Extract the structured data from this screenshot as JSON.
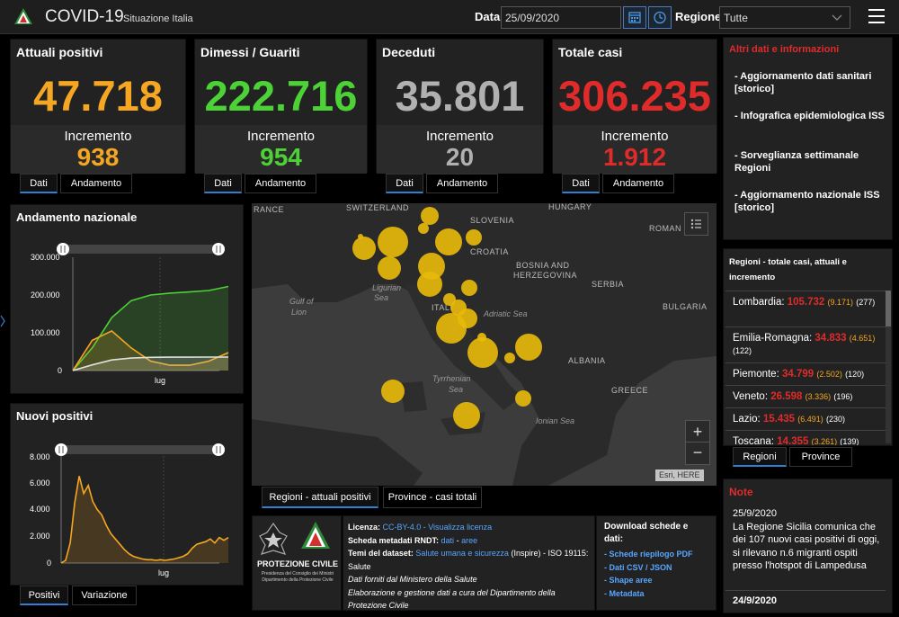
{
  "header": {
    "title": "COVID-19",
    "subtitle": "Situazione Italia",
    "date_label": "Data",
    "date_value": "25/09/2020",
    "region_label": "Regione",
    "region_value": "Tutte"
  },
  "cards": [
    {
      "title": "Attuali positivi",
      "value": "47.718",
      "inc_label": "Incremento",
      "inc_value": "938",
      "color": "#f5a623",
      "tabs": [
        "Dati",
        "Andamento"
      ]
    },
    {
      "title": "Dimessi / Guariti",
      "value": "222.716",
      "inc_label": "Incremento",
      "inc_value": "954",
      "color": "#4cd137",
      "tabs": [
        "Dati",
        "Andamento"
      ]
    },
    {
      "title": "Deceduti",
      "value": "35.801",
      "inc_label": "Incremento",
      "inc_value": "20",
      "color": "#b0b0b0",
      "tabs": [
        "Dati",
        "Andamento"
      ]
    },
    {
      "title": "Totale casi",
      "value": "306.235",
      "inc_label": "Incremento",
      "inc_value": "1.912",
      "color": "#e02b2b",
      "tabs": [
        "Dati",
        "Andamento"
      ]
    }
  ],
  "trend_chart": {
    "title": "Andamento nazionale",
    "y_ticks": [
      "300.000",
      "200.000",
      "100.000",
      "0"
    ],
    "x_label": "lug"
  },
  "new_chart": {
    "title": "Nuovi positivi",
    "y_ticks": [
      "8.000",
      "6.000",
      "4.000",
      "2.000",
      "0"
    ],
    "x_label": "lug",
    "tabs": [
      "Positivi",
      "Variazione"
    ]
  },
  "chart_data": [
    {
      "type": "area",
      "title": "Andamento nazionale",
      "ylim": [
        0,
        300000
      ],
      "series": [
        {
          "values": [
            0,
            60000,
            140000,
            185000,
            200000,
            205000,
            208000,
            212000,
            222716
          ],
          "color": "#4cd137"
        },
        {
          "values": [
            0,
            80000,
            105000,
            60000,
            25000,
            14000,
            14000,
            25000,
            47718
          ],
          "color": "#f5a623"
        },
        {
          "values": [
            0,
            15000,
            28000,
            33000,
            35000,
            35500,
            35500,
            35700,
            35801
          ],
          "color": "#e0e0e0"
        }
      ]
    },
    {
      "type": "area",
      "title": "Nuovi positivi",
      "ylim": [
        0,
        8000
      ],
      "series": [
        {
          "values": [
            0,
            200,
            1500,
            4500,
            6500,
            5200,
            5800,
            4600,
            4000,
            3600,
            2800,
            2200,
            1800,
            1400,
            1000,
            700,
            500,
            400,
            300,
            250,
            250,
            200,
            250,
            200,
            250,
            300,
            400,
            500,
            700,
            1100,
            1400,
            1500,
            1600,
            1800,
            1500,
            1900,
            1700,
            1900
          ],
          "color": "#f5a623"
        }
      ]
    }
  ],
  "map": {
    "labels": [
      "RANCE",
      "SWITZERLAND",
      "SLOVENIA",
      "HUNGARY",
      "ROMAN",
      "CROATIA",
      "BOSNIA AND",
      "HERZEGOVINA",
      "SERBIA",
      "BULGARIA",
      "ITALY",
      "ALBANIA",
      "GREECE"
    ],
    "seas": [
      "Ligurian",
      "Sea",
      "Gulf of",
      "Lion",
      "Adriatic Sea",
      "Tyrrhenian",
      "Sea",
      "Ionian Sea"
    ],
    "attribution": "Esri, HERE",
    "tabs": [
      "Regioni - attuali positivi",
      "Province - casi totali"
    ],
    "zoom_in": "+",
    "zoom_out": "−"
  },
  "info": {
    "title": "Altri dati e informazioni",
    "items": [
      "- Aggiornamento dati sanitari [storico]",
      "- Infografica epidemiologica ISS",
      "- Sorveglianza settimanale Regioni",
      "- Aggiornamento nazionale ISS [storico]"
    ]
  },
  "regions": {
    "title": "Regioni - totale casi, attuali e incremento",
    "rows": [
      {
        "name": "Lombardia:",
        "total": "105.732",
        "current": "(9.171)",
        "inc": "(277)"
      },
      {
        "name": "Emilia-Romagna:",
        "total": "34.833",
        "current": "(4.651)",
        "inc": "(122)"
      },
      {
        "name": "Piemonte:",
        "total": "34.799",
        "current": "(2.502)",
        "inc": "(120)"
      },
      {
        "name": "Veneto:",
        "total": "26.598",
        "current": "(3.336)",
        "inc": "(196)"
      },
      {
        "name": "Lazio:",
        "total": "15.435",
        "current": "(6.491)",
        "inc": "(230)"
      },
      {
        "name": "Toscana:",
        "total": "14.355",
        "current": "(3.261)",
        "inc": "(139)"
      }
    ],
    "tabs": [
      "Regioni",
      "Province"
    ]
  },
  "notes": {
    "title": "Note",
    "entries": [
      {
        "date": "25/9/2020",
        "text": "La Regione Sicilia comunica che dei 107 nuovi casi positivi di oggi, si rilevano n.6 migranti ospiti presso l'hotspot di Lampedusa"
      },
      {
        "date": "24/9/2020",
        "text": ""
      }
    ]
  },
  "protezione": {
    "name": "PROTEZIONE CIVILE",
    "line1": "Presidenza del Consiglio dei Ministri",
    "line2": "Dipartimento della Protezione Civile"
  },
  "license": {
    "licenza_label": "Licenza:",
    "licenza_link1": "CC-BY-4.0",
    "licenza_sep": " - ",
    "licenza_link2": "Visualizza licenza",
    "metadati_label": "Scheda metadati RNDT:",
    "metadati_link1": "dati",
    "metadati_link2": "aree",
    "temi_label": "Temi del dataset:",
    "temi_link": "Salute umana e sicurezza",
    "temi_rest": "(Inspire) - ISO 19115:",
    "temi_end": "Salute",
    "line_fonte": "Dati forniti dal Ministero della Salute",
    "line_elab": "Elaborazione e gestione dati a cura del Dipartimento della Protezione Civile"
  },
  "download": {
    "title": "Download schede e dati:",
    "links": [
      "- Schede riepilogo PDF",
      "- Dati CSV / JSON",
      "- Shape aree",
      "- Metadata"
    ]
  },
  "colors": {
    "accent_blue": "#2f7fd4",
    "link": "#58a6ff",
    "bubble": "#e6b80b"
  }
}
